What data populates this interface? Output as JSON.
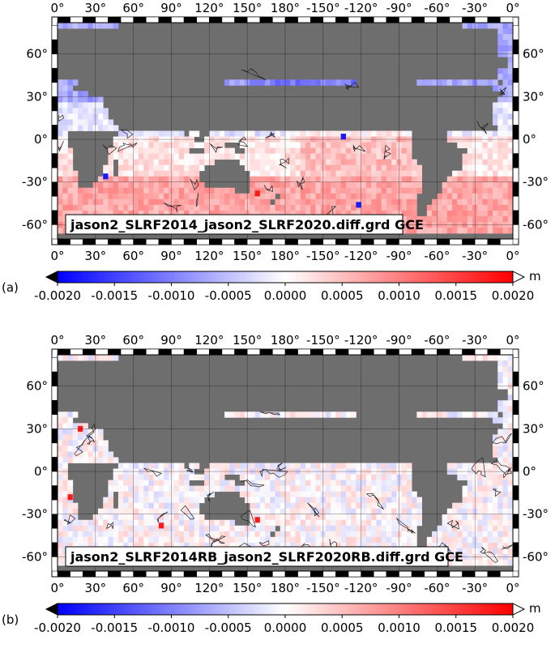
{
  "colors": {
    "land": "#6e6e6e",
    "neg_end": "#0000ff",
    "zero": "#ffffff",
    "pos_end": "#ff0000"
  },
  "longitude_labels": [
    "0°",
    "30°",
    "60°",
    "90°",
    "120°",
    "150°",
    "180°",
    "-150°",
    "-120°",
    "-90°",
    "-60°",
    "-30°",
    "0°"
  ],
  "latitude_labels": [
    "60°",
    "30°",
    "0°",
    "-30°",
    "-60°"
  ],
  "colorbar": {
    "unit": "m",
    "tick_labels": [
      "-0.0020",
      "-0.0015",
      "-0.0010",
      "-0.0005",
      "0.0000",
      "0.0005",
      "0.0010",
      "0.0015",
      "0.0020"
    ]
  },
  "panels": [
    {
      "tag": "(a)",
      "title": "jason2_SLRF2014_jason2_SLRF2020.diff.grd GCE"
    },
    {
      "tag": "(b)",
      "title": "jason2_SLRF2014RB_jason2_SLRF2020RB.diff.grd GCE"
    }
  ]
}
